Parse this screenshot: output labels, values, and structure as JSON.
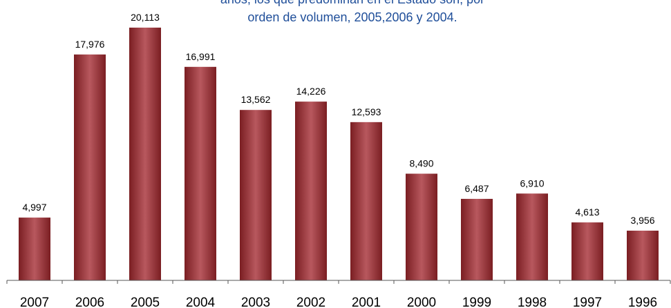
{
  "annotation": {
    "line1": "años, los que predominan en el Estado son, por",
    "line2": "orden de volumen, 2005,2006 y 2004."
  },
  "colors": {
    "bar_dark": "#7A1E22",
    "bar_light": "#B8585E",
    "text_blue": "#1F4E99",
    "axis": "#555555"
  },
  "chart_data": {
    "type": "bar",
    "categories": [
      "2007",
      "2006",
      "2005",
      "2004",
      "2003",
      "2002",
      "2001",
      "2000",
      "1999",
      "1998",
      "1997",
      "1996"
    ],
    "values": [
      4997,
      17976,
      20113,
      16991,
      13562,
      14226,
      12593,
      8490,
      6487,
      6910,
      4613,
      3956
    ],
    "data_labels": [
      "4,997",
      "17,976",
      "20,113",
      "16,991",
      "13,562",
      "14,226",
      "12,593",
      "8,490",
      "6,487",
      "6,910",
      "4,613",
      "3,956"
    ],
    "ylim": [
      0,
      23000
    ],
    "grid": false,
    "legend": "none"
  }
}
